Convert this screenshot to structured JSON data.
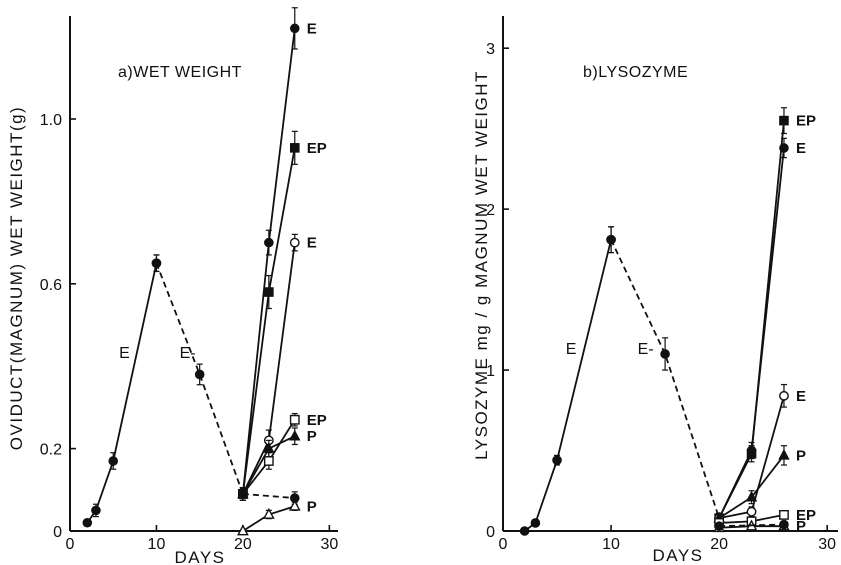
{
  "chart_data": [
    {
      "type": "line",
      "title": "a)WET WEIGHT",
      "xlabel": "DAYS",
      "ylabel": "OVIDUCT(MAGNUM) WET WEIGHT(g)",
      "xlim": [
        0,
        31
      ],
      "ylim": [
        0,
        1.25
      ],
      "xticks": [
        0,
        10,
        20,
        30
      ],
      "yticks": [
        {
          "value": 0,
          "label": "0"
        },
        {
          "value": 0.2,
          "label": "0.2"
        },
        {
          "value": 0.6,
          "label": "0.6"
        },
        {
          "value": 1.0,
          "label": "1.0"
        }
      ],
      "annotations": [
        {
          "text": "E",
          "x": 6.3,
          "y": 0.42
        },
        {
          "text": "E-",
          "x": 13.6,
          "y": 0.42
        }
      ],
      "series": [
        {
          "marker": "filled-circle",
          "style": "solid",
          "x": [
            2,
            3,
            5,
            10
          ],
          "y": [
            0.02,
            0.05,
            0.17,
            0.65
          ],
          "err": [
            0.008,
            0.015,
            0.02,
            0.02
          ]
        },
        {
          "marker": "filled-circle",
          "style": "dashed",
          "x": [
            10,
            15,
            20
          ],
          "y": [
            0.65,
            0.38,
            0.09
          ],
          "err": [
            0.02,
            0.025,
            0.015
          ]
        },
        {
          "name": "E",
          "marker": "filled-circle",
          "style": "solid",
          "x": [
            20,
            23,
            26
          ],
          "y": [
            0.09,
            0.7,
            1.22
          ],
          "err": [
            0.015,
            0.03,
            0.05
          ]
        },
        {
          "name": "EP",
          "marker": "filled-square",
          "style": "solid",
          "x": [
            20,
            23,
            26
          ],
          "y": [
            0.09,
            0.58,
            0.93
          ],
          "err": [
            0.015,
            0.04,
            0.04
          ]
        },
        {
          "name": "E",
          "marker": "open-circle",
          "style": "solid",
          "x": [
            20,
            23,
            26
          ],
          "y": [
            0.09,
            0.22,
            0.7
          ],
          "err": [
            0.015,
            0.025,
            0.02
          ]
        },
        {
          "name": "EP",
          "marker": "open-square",
          "style": "solid",
          "x": [
            20,
            23,
            26
          ],
          "y": [
            0.09,
            0.17,
            0.27
          ],
          "err": [
            0.015,
            0.02,
            0.015
          ]
        },
        {
          "name": "P",
          "marker": "filled-triangle",
          "style": "solid",
          "x": [
            20,
            23,
            26
          ],
          "y": [
            0.09,
            0.2,
            0.23
          ],
          "err": [
            0.015,
            0.02,
            0.02
          ]
        },
        {
          "marker": "filled-circle",
          "style": "dashed",
          "x": [
            20,
            26
          ],
          "y": [
            0.09,
            0.08
          ],
          "err": [
            0.015,
            0.015
          ]
        },
        {
          "name": "P",
          "marker": "open-triangle",
          "style": "solid",
          "x": [
            20,
            23,
            26
          ],
          "y": [
            0.0,
            0.04,
            0.06
          ],
          "err": [
            0,
            0.01,
            0.01
          ]
        }
      ]
    },
    {
      "type": "line",
      "title": "b)LYSOZYME",
      "xlabel": "DAYS",
      "ylabel": "LYSOZYME mg / g MAGNUM WET WEIGHT",
      "xlim": [
        0,
        31
      ],
      "ylim": [
        0,
        3.2
      ],
      "xticks": [
        0,
        10,
        20,
        30
      ],
      "yticks": [
        {
          "value": 0,
          "label": "0"
        },
        {
          "value": 1,
          "label": "1"
        },
        {
          "value": 2,
          "label": "2"
        },
        {
          "value": 3,
          "label": "3"
        }
      ],
      "annotations": [
        {
          "text": "E",
          "x": 6.3,
          "y": 1.1
        },
        {
          "text": "E-",
          "x": 13.2,
          "y": 1.1
        }
      ],
      "series": [
        {
          "marker": "filled-circle",
          "style": "solid",
          "x": [
            2,
            3,
            5,
            10
          ],
          "y": [
            0.0,
            0.05,
            0.44,
            1.81
          ],
          "err": [
            0.008,
            0.02,
            0.03,
            0.08
          ]
        },
        {
          "marker": "filled-circle",
          "style": "dashed",
          "x": [
            10,
            15,
            20
          ],
          "y": [
            1.81,
            1.1,
            0.08
          ],
          "err": [
            0.08,
            0.1,
            0.03
          ]
        },
        {
          "name": "EP",
          "marker": "filled-square",
          "style": "solid",
          "x": [
            20,
            23,
            26
          ],
          "y": [
            0.08,
            0.48,
            2.55
          ],
          "err": [
            0.03,
            0.05,
            0.08
          ]
        },
        {
          "name": "E",
          "marker": "filled-circle",
          "style": "solid",
          "x": [
            20,
            23,
            26
          ],
          "y": [
            0.08,
            0.5,
            2.38
          ],
          "err": [
            0.03,
            0.05,
            0.06
          ]
        },
        {
          "name": "E",
          "marker": "open-circle",
          "style": "solid",
          "x": [
            20,
            23,
            26
          ],
          "y": [
            0.08,
            0.12,
            0.84
          ],
          "err": [
            0.03,
            0.03,
            0.07
          ]
        },
        {
          "name": "P",
          "marker": "filled-triangle",
          "style": "solid",
          "x": [
            20,
            23,
            26
          ],
          "y": [
            0.08,
            0.21,
            0.47
          ],
          "err": [
            0.03,
            0.04,
            0.06
          ]
        },
        {
          "name": "EP",
          "marker": "open-square",
          "style": "solid",
          "x": [
            20,
            23,
            26
          ],
          "y": [
            0.05,
            0.06,
            0.1
          ],
          "err": [
            0.02,
            0.02,
            0.02
          ]
        },
        {
          "name": "P",
          "marker": "open-triangle",
          "style": "solid",
          "x": [
            20,
            23,
            26
          ],
          "y": [
            0.02,
            0.03,
            0.03
          ],
          "err": [
            0.01,
            0.01,
            0.01
          ]
        },
        {
          "marker": "filled-circle",
          "style": "dashed",
          "x": [
            20,
            26
          ],
          "y": [
            0.03,
            0.04
          ],
          "err": [
            0.01,
            0.01
          ]
        }
      ]
    }
  ]
}
